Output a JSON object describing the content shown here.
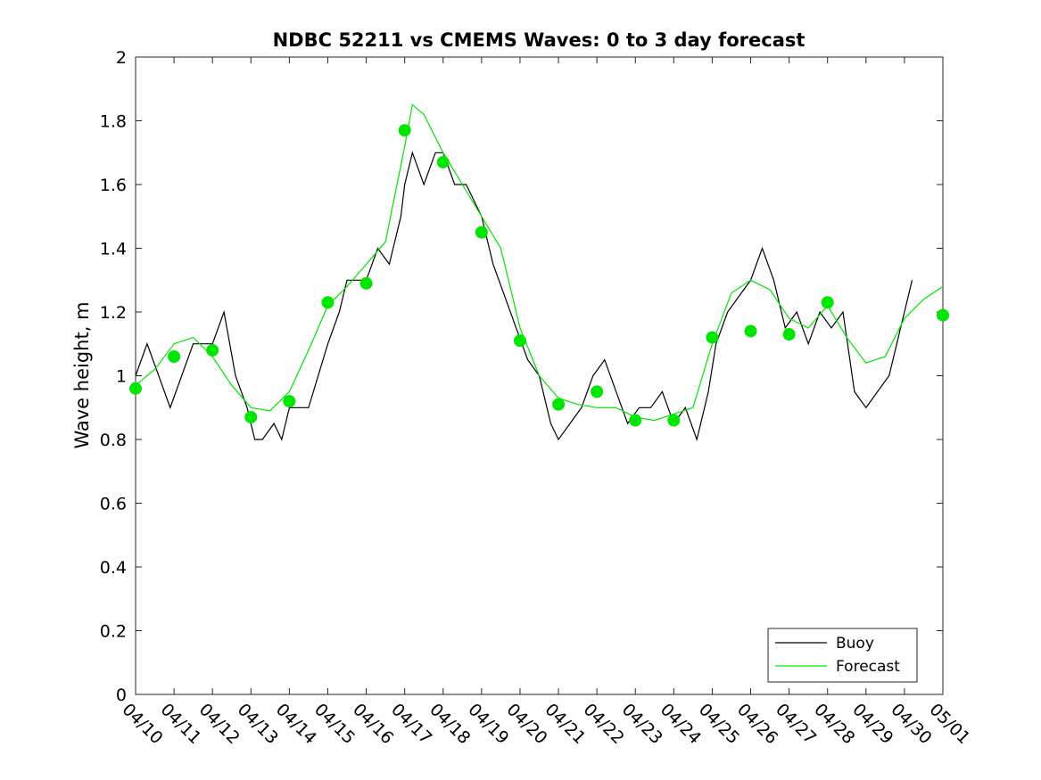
{
  "chart_data": {
    "type": "line",
    "title": "NDBC 52211 vs CMEMS Waves: 0 to 3 day forecast",
    "xlabel": "",
    "ylabel": "Wave height, m",
    "ylim": [
      0,
      2
    ],
    "yticks": [
      "0",
      "0.2",
      "0.4",
      "0.6",
      "0.8",
      "1",
      "1.2",
      "1.4",
      "1.6",
      "1.8",
      "2"
    ],
    "x_axis": "days since 04/10",
    "xlim": [
      0,
      21
    ],
    "xtick_labels": [
      "04/10",
      "04/11",
      "04/12",
      "04/13",
      "04/14",
      "04/15",
      "04/16",
      "04/17",
      "04/18",
      "04/19",
      "04/20",
      "04/21",
      "04/22",
      "04/23",
      "04/24",
      "04/25",
      "04/26",
      "04/27",
      "04/28",
      "04/29",
      "04/30",
      "05/01"
    ],
    "grid": false,
    "legend": {
      "placement": "bottom-right",
      "entries": [
        "Buoy",
        "Forecast"
      ]
    },
    "colors": {
      "buoy": "#000000",
      "forecast": "#00e600"
    },
    "series": [
      {
        "name": "Buoy",
        "x": [
          0,
          0.3,
          0.6,
          0.9,
          1.2,
          1.5,
          2.0,
          2.3,
          2.6,
          2.9,
          3.1,
          3.3,
          3.6,
          3.8,
          4.0,
          4.5,
          5.0,
          5.3,
          5.5,
          5.8,
          6.0,
          6.3,
          6.6,
          6.9,
          7.0,
          7.2,
          7.5,
          7.8,
          8.0,
          8.3,
          8.6,
          9.0,
          9.3,
          9.6,
          9.9,
          10.2,
          10.5,
          10.8,
          11.0,
          11.3,
          11.6,
          11.9,
          12.2,
          12.5,
          12.8,
          13.1,
          13.4,
          13.7,
          14.0,
          14.3,
          14.6,
          14.9,
          15.1,
          15.4,
          15.7,
          16.0,
          16.3,
          16.6,
          16.9,
          17.2,
          17.5,
          17.8,
          18.1,
          18.4,
          18.7,
          19.0,
          19.3,
          19.6,
          19.9,
          20.2
        ],
        "y": [
          1.0,
          1.1,
          1.0,
          0.9,
          1.0,
          1.1,
          1.1,
          1.2,
          1.0,
          0.9,
          0.8,
          0.8,
          0.85,
          0.8,
          0.9,
          0.9,
          1.1,
          1.2,
          1.3,
          1.3,
          1.3,
          1.4,
          1.35,
          1.5,
          1.6,
          1.7,
          1.6,
          1.7,
          1.7,
          1.6,
          1.6,
          1.5,
          1.35,
          1.25,
          1.15,
          1.05,
          1.0,
          0.85,
          0.8,
          0.85,
          0.9,
          1.0,
          1.05,
          0.95,
          0.85,
          0.9,
          0.9,
          0.95,
          0.85,
          0.9,
          0.8,
          0.95,
          1.1,
          1.2,
          1.25,
          1.3,
          1.4,
          1.3,
          1.15,
          1.2,
          1.1,
          1.2,
          1.15,
          1.2,
          0.95,
          0.9,
          0.95,
          1.0,
          1.15,
          1.3
        ]
      },
      {
        "name": "Forecast",
        "x": [
          0,
          0.5,
          1.0,
          1.5,
          2.0,
          2.5,
          3.0,
          3.5,
          4.0,
          4.5,
          5.0,
          5.5,
          6.0,
          6.5,
          7.0,
          7.2,
          7.5,
          8.0,
          8.5,
          9.0,
          9.5,
          10.0,
          10.5,
          11.0,
          11.5,
          12.0,
          12.5,
          13.0,
          13.5,
          14.0,
          14.5,
          15.0,
          15.5,
          16.0,
          16.5,
          17.0,
          17.5,
          18.0,
          18.5,
          19.0,
          19.5,
          20.0,
          20.5,
          21.0
        ],
        "y": [
          0.97,
          1.02,
          1.1,
          1.12,
          1.06,
          0.97,
          0.9,
          0.89,
          0.95,
          1.08,
          1.22,
          1.28,
          1.35,
          1.42,
          1.72,
          1.85,
          1.82,
          1.7,
          1.6,
          1.5,
          1.4,
          1.15,
          1.0,
          0.93,
          0.91,
          0.9,
          0.9,
          0.87,
          0.86,
          0.88,
          0.9,
          1.1,
          1.26,
          1.3,
          1.27,
          1.18,
          1.15,
          1.22,
          1.12,
          1.04,
          1.06,
          1.18,
          1.24,
          1.28
        ]
      }
    ],
    "markers": {
      "name": "Forecast",
      "x": [
        0,
        1,
        2,
        3,
        4,
        5,
        6,
        7,
        8,
        9,
        10,
        11,
        12,
        13,
        14,
        15,
        16,
        17,
        18,
        21
      ],
      "y": [
        0.96,
        1.06,
        1.08,
        0.87,
        0.92,
        1.23,
        1.29,
        1.77,
        1.67,
        1.45,
        1.11,
        0.91,
        0.95,
        0.86,
        0.86,
        1.12,
        1.14,
        1.13,
        1.23,
        1.19
      ]
    }
  }
}
